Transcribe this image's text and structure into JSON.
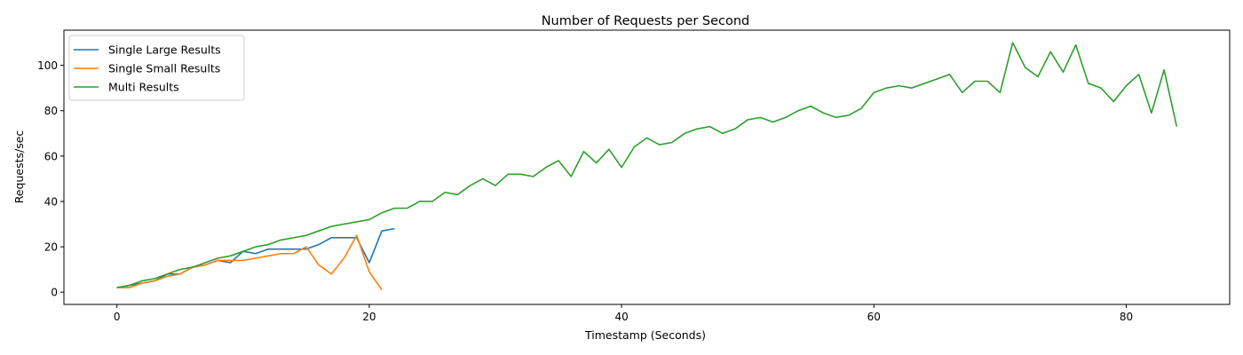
{
  "chart_data": {
    "type": "line",
    "title": "Number of Requests per Second",
    "xlabel": "Timestamp (Seconds)",
    "ylabel": "Requests/sec",
    "xlim": [
      -4.2,
      88.2
    ],
    "ylim": [
      -5.4,
      115.5
    ],
    "xticks": [
      0,
      20,
      40,
      60,
      80
    ],
    "yticks": [
      0,
      20,
      40,
      60,
      80,
      100
    ],
    "grid": false,
    "legend_position": "top-left",
    "series": [
      {
        "name": "Single Large Results",
        "color": "#1f77b4",
        "x": [
          0,
          1,
          2,
          3,
          4,
          5,
          6,
          7,
          8,
          9,
          10,
          11,
          12,
          13,
          14,
          15,
          16,
          17,
          18,
          19,
          20,
          21,
          22
        ],
        "y": [
          2,
          3,
          4,
          5,
          8,
          8,
          11,
          12,
          14,
          13,
          18,
          17,
          19,
          19,
          19,
          19,
          21,
          24,
          24,
          24,
          13,
          27,
          28
        ]
      },
      {
        "name": "Single Small Results",
        "color": "#ff7f0e",
        "x": [
          0,
          1,
          2,
          3,
          4,
          5,
          6,
          7,
          8,
          9,
          10,
          11,
          12,
          13,
          14,
          15,
          16,
          17,
          18,
          19,
          20,
          21
        ],
        "y": [
          2,
          2,
          4,
          5,
          7,
          8,
          11,
          12,
          14,
          14,
          14,
          15,
          16,
          17,
          17,
          20,
          12,
          8,
          15,
          25,
          9,
          1
        ]
      },
      {
        "name": "Multi Results",
        "color": "#2ca02c",
        "x": [
          0,
          1,
          2,
          3,
          4,
          5,
          6,
          7,
          8,
          9,
          10,
          11,
          12,
          13,
          14,
          15,
          16,
          17,
          18,
          19,
          20,
          21,
          22,
          23,
          24,
          25,
          26,
          27,
          28,
          29,
          30,
          31,
          32,
          33,
          34,
          35,
          36,
          37,
          38,
          39,
          40,
          41,
          42,
          43,
          44,
          45,
          46,
          47,
          48,
          49,
          50,
          51,
          52,
          53,
          54,
          55,
          56,
          57,
          58,
          59,
          60,
          61,
          62,
          63,
          64,
          65,
          66,
          67,
          68,
          69,
          70,
          71,
          72,
          73,
          74,
          75,
          76,
          77,
          78,
          79,
          80,
          81,
          82,
          83,
          84
        ],
        "y": [
          2,
          3,
          5,
          6,
          8,
          10,
          11,
          13,
          15,
          16,
          18,
          20,
          21,
          23,
          24,
          25,
          27,
          29,
          30,
          31,
          32,
          35,
          37,
          37,
          40,
          40,
          44,
          43,
          47,
          50,
          47,
          52,
          52,
          51,
          55,
          58,
          51,
          62,
          57,
          63,
          55,
          64,
          68,
          65,
          66,
          70,
          72,
          73,
          70,
          72,
          76,
          77,
          75,
          77,
          80,
          82,
          79,
          77,
          78,
          81,
          88,
          90,
          91,
          90,
          92,
          94,
          96,
          88,
          93,
          93,
          88,
          110,
          99,
          95,
          106,
          97,
          109,
          92,
          90,
          84,
          91,
          96,
          79,
          98,
          73
        ]
      }
    ]
  }
}
